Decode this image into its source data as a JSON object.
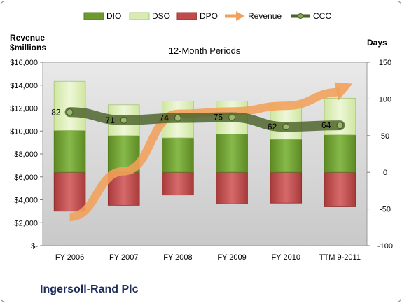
{
  "company": "Ingersoll-Rand Plc",
  "chart_data": {
    "type": "bar",
    "title": "12-Month Periods",
    "y_left_label_line1": "Revenue",
    "y_left_label_line2": "$millions",
    "y_right_label": "Days",
    "categories": [
      "FY 2006",
      "FY 2007",
      "FY 2008",
      "FY 2009",
      "FY 2010",
      "TTM 9-2011"
    ],
    "y_left": {
      "min": 0,
      "max": 16000,
      "step": 2000,
      "ticks": [
        "$-",
        "$2,000",
        "$4,000",
        "$6,000",
        "$8,000",
        "$10,000",
        "$12,000",
        "$14,000",
        "$16,000"
      ]
    },
    "y_right": {
      "min": -100,
      "max": 150,
      "step": 50,
      "ticks": [
        "-100",
        "-50",
        "0",
        "50",
        "100",
        "150"
      ]
    },
    "series": [
      {
        "name": "DIO",
        "values": [
          57,
          50,
          47,
          52,
          45,
          51
        ]
      },
      {
        "name": "DSO",
        "values": [
          67,
          42,
          50,
          45,
          48,
          50
        ]
      },
      {
        "name": "DPO",
        "values": [
          -53,
          -45,
          -31,
          -43,
          -42,
          -47
        ]
      },
      {
        "name": "Revenue",
        "values": [
          2500,
          6500,
          11500,
          11700,
          12200,
          13400
        ]
      },
      {
        "name": "CCC",
        "values": [
          82,
          71,
          74,
          75,
          62,
          64
        ]
      }
    ],
    "ccc_labels": [
      "82",
      "71",
      "74",
      "75",
      "62",
      "64"
    ],
    "colors": {
      "DIO": "#6c9a2e",
      "DSO": "#d8ebb0",
      "DPO": "#c24a4a",
      "Revenue": "#f2a05a",
      "CCC": "#4a6128",
      "plot_bg": "#d7d7d7"
    },
    "legend_position": "top",
    "grid": false
  }
}
